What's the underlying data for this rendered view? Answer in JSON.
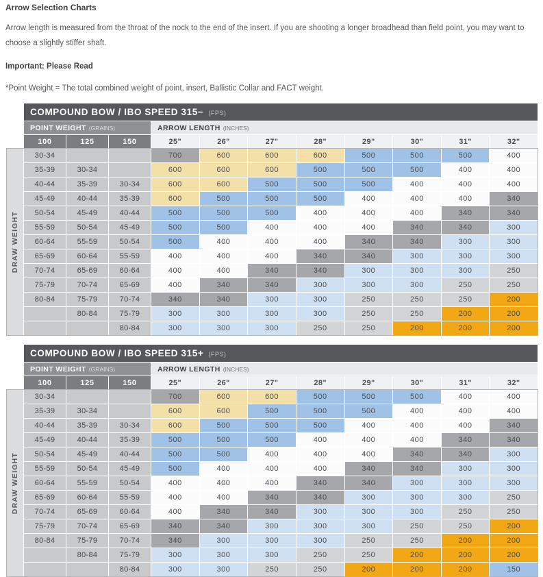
{
  "page": {
    "title": "Arrow Selection Charts",
    "intro": "Arrow length is measured from the throat of the nock to the end of the insert. If you are shooting a longer broadhead than field point, you may want to choose a slightly stiffer shaft.",
    "important": "Important: Please Read",
    "note": "*Point Weight = The total combined weight of point, insert, Ballistic Collar and FACT weight."
  },
  "colors": {
    "banner_bg": "#56575a",
    "point_weight_header_bg": "#8e9093",
    "arrow_length_header_bg": "#e8e9ea",
    "grain_col_header_bg": "#7b7d80",
    "inch_col_header_bg": "#f0f1f2",
    "row_label_bg": "#c7c9cb",
    "draw_weight_strip_bg": "#dbdcdd",
    "value_colors": {
      "700": "#a5a7aa",
      "600": "#f3dfa8",
      "500": "#a1c2e7",
      "400": "#fbfbfc",
      "340": "#a5a7aa",
      "300": "#cfe0f2",
      "250": "#d2d4d5",
      "200": "#f2a715",
      "150": "#a1c2e7"
    }
  },
  "tables": [
    {
      "title": "COMPOUND BOW / IBO SPEED 315−",
      "title_unit": "(FPS)",
      "point_weight_label": "POINT WEIGHT",
      "point_weight_unit": "(GRAINS)",
      "arrow_length_label": "ARROW LENGTH",
      "arrow_length_unit": "(INCHES)",
      "draw_weight_label": "DRAW WEIGHT",
      "point_weight_cols": [
        "100",
        "125",
        "150"
      ],
      "arrow_length_cols": [
        "25\"",
        "26\"",
        "27\"",
        "28\"",
        "29\"",
        "30\"",
        "31\"",
        "32\""
      ],
      "rows": [
        {
          "labels": [
            "30-34",
            "",
            ""
          ],
          "values": [
            700,
            600,
            600,
            600,
            500,
            500,
            500,
            400
          ]
        },
        {
          "labels": [
            "35-39",
            "30-34",
            ""
          ],
          "values": [
            600,
            600,
            600,
            500,
            500,
            500,
            400,
            400
          ]
        },
        {
          "labels": [
            "40-44",
            "35-39",
            "30-34"
          ],
          "values": [
            600,
            600,
            500,
            500,
            500,
            400,
            400,
            400
          ]
        },
        {
          "labels": [
            "45-49",
            "40-44",
            "35-39"
          ],
          "values": [
            600,
            500,
            500,
            500,
            400,
            400,
            400,
            340
          ]
        },
        {
          "labels": [
            "50-54",
            "45-49",
            "40-44"
          ],
          "values": [
            500,
            500,
            500,
            400,
            400,
            400,
            340,
            340
          ]
        },
        {
          "labels": [
            "55-59",
            "50-54",
            "45-49"
          ],
          "values": [
            500,
            500,
            400,
            400,
            400,
            340,
            340,
            300
          ]
        },
        {
          "labels": [
            "60-64",
            "55-59",
            "50-54"
          ],
          "values": [
            500,
            400,
            400,
            400,
            340,
            340,
            300,
            300
          ]
        },
        {
          "labels": [
            "65-69",
            "60-64",
            "55-59"
          ],
          "values": [
            400,
            400,
            400,
            340,
            340,
            300,
            300,
            300
          ]
        },
        {
          "labels": [
            "70-74",
            "65-69",
            "60-64"
          ],
          "values": [
            400,
            400,
            340,
            340,
            300,
            300,
            300,
            250
          ]
        },
        {
          "labels": [
            "75-79",
            "70-74",
            "65-69"
          ],
          "values": [
            400,
            340,
            340,
            300,
            300,
            300,
            250,
            250
          ]
        },
        {
          "labels": [
            "80-84",
            "75-79",
            "70-74"
          ],
          "values": [
            340,
            340,
            300,
            300,
            250,
            250,
            250,
            200
          ]
        },
        {
          "labels": [
            "",
            "80-84",
            "75-79"
          ],
          "values": [
            300,
            300,
            300,
            300,
            250,
            250,
            200,
            200
          ]
        },
        {
          "labels": [
            "",
            "",
            "80-84"
          ],
          "values": [
            300,
            300,
            300,
            250,
            250,
            200,
            200,
            200
          ]
        }
      ]
    },
    {
      "title": "COMPOUND BOW / IBO SPEED 315+",
      "title_unit": "(FPS)",
      "point_weight_label": "POINT WEIGHT",
      "point_weight_unit": "(GRAINS)",
      "arrow_length_label": "ARROW LENGTH",
      "arrow_length_unit": "(INCHES)",
      "draw_weight_label": "DRAW WEIGHT",
      "point_weight_cols": [
        "100",
        "125",
        "150"
      ],
      "arrow_length_cols": [
        "25\"",
        "26\"",
        "27\"",
        "28\"",
        "29\"",
        "30\"",
        "31\"",
        "32\""
      ],
      "rows": [
        {
          "labels": [
            "30-34",
            "",
            ""
          ],
          "values": [
            700,
            600,
            600,
            500,
            500,
            500,
            400,
            400
          ]
        },
        {
          "labels": [
            "35-39",
            "30-34",
            ""
          ],
          "values": [
            600,
            600,
            500,
            500,
            500,
            400,
            400,
            400
          ]
        },
        {
          "labels": [
            "40-44",
            "35-39",
            "30-34"
          ],
          "values": [
            600,
            500,
            500,
            500,
            400,
            400,
            400,
            340
          ]
        },
        {
          "labels": [
            "45-49",
            "40-44",
            "35-39"
          ],
          "values": [
            500,
            500,
            500,
            400,
            400,
            400,
            340,
            340
          ]
        },
        {
          "labels": [
            "50-54",
            "45-49",
            "40-44"
          ],
          "values": [
            500,
            500,
            400,
            400,
            400,
            340,
            340,
            300
          ]
        },
        {
          "labels": [
            "55-59",
            "50-54",
            "45-49"
          ],
          "values": [
            500,
            400,
            400,
            400,
            340,
            340,
            300,
            300
          ]
        },
        {
          "labels": [
            "60-64",
            "55-59",
            "50-54"
          ],
          "values": [
            400,
            400,
            400,
            340,
            340,
            300,
            300,
            300
          ]
        },
        {
          "labels": [
            "65-69",
            "60-64",
            "55-59"
          ],
          "values": [
            400,
            400,
            340,
            340,
            300,
            300,
            300,
            250
          ]
        },
        {
          "labels": [
            "70-74",
            "65-69",
            "60-64"
          ],
          "values": [
            400,
            340,
            340,
            300,
            300,
            300,
            250,
            250
          ]
        },
        {
          "labels": [
            "75-79",
            "70-74",
            "65-69"
          ],
          "values": [
            340,
            340,
            300,
            300,
            300,
            250,
            250,
            200
          ]
        },
        {
          "labels": [
            "80-84",
            "75-79",
            "70-74"
          ],
          "values": [
            340,
            300,
            300,
            300,
            250,
            250,
            200,
            200
          ]
        },
        {
          "labels": [
            "",
            "80-84",
            "75-79"
          ],
          "values": [
            300,
            300,
            300,
            250,
            250,
            200,
            200,
            200
          ]
        },
        {
          "labels": [
            "",
            "",
            "80-84"
          ],
          "values": [
            300,
            300,
            250,
            250,
            200,
            200,
            200,
            150
          ]
        }
      ]
    }
  ]
}
